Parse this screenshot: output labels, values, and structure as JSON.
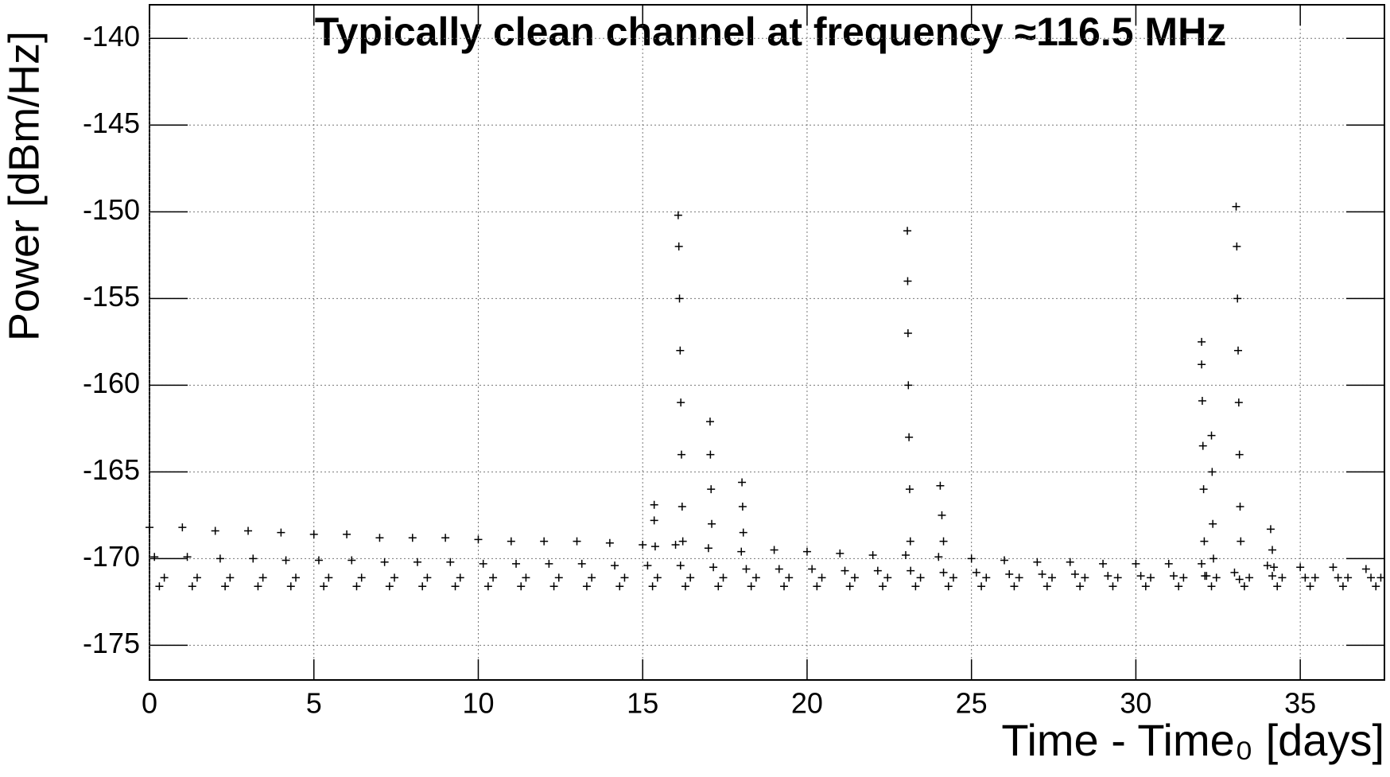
{
  "chart_data": {
    "type": "scatter",
    "title": "Typically clean channel at frequency ≈116.5 MHz",
    "x_label": "Time - Time₀ [days]",
    "y_label": "Power [dBm/Hz]",
    "xlim": [
      0,
      37.56
    ],
    "ylim": [
      -177,
      -138.06
    ],
    "xticks": [
      0,
      5,
      10,
      15,
      20,
      25,
      30,
      35
    ],
    "yticks": [
      -175,
      -170,
      -165,
      -160,
      -155,
      -150,
      -145,
      -140
    ],
    "grid": true,
    "color": "#000000",
    "x": [
      0,
      0.15,
      0.3,
      0.45,
      1,
      1.15,
      1.3,
      1.45,
      2,
      2.15,
      2.3,
      2.45,
      3,
      3.15,
      3.3,
      3.45,
      4,
      4.15,
      4.3,
      4.45,
      5,
      5.15,
      5.3,
      5.45,
      6,
      6.15,
      6.3,
      6.45,
      7,
      7.15,
      7.3,
      7.45,
      8,
      8.15,
      8.3,
      8.45,
      9,
      9.15,
      9.3,
      9.45,
      10,
      10.15,
      10.3,
      10.45,
      11,
      11.15,
      11.3,
      11.45,
      12,
      12.15,
      12.3,
      12.45,
      13,
      13.15,
      13.3,
      13.45,
      14,
      14.15,
      14.3,
      14.45,
      15,
      15.15,
      15.3,
      15.45,
      16,
      16.15,
      16.3,
      16.45,
      17,
      17.15,
      17.3,
      17.45,
      18,
      18.15,
      18.3,
      18.45,
      19,
      19.15,
      19.3,
      19.45,
      20,
      20.15,
      20.3,
      20.45,
      21,
      21.15,
      21.3,
      21.45,
      22,
      22.15,
      22.3,
      22.45,
      23,
      23.15,
      23.3,
      23.45,
      24,
      24.15,
      24.3,
      24.45,
      25,
      25.15,
      25.3,
      25.45,
      26,
      26.15,
      26.3,
      26.45,
      27,
      27.15,
      27.3,
      27.45,
      28,
      28.15,
      28.3,
      28.45,
      29,
      29.15,
      29.3,
      29.45,
      30,
      30.15,
      30.3,
      30.45,
      31,
      31.15,
      31.3,
      31.45,
      32,
      32.15,
      32.3,
      32.45,
      33,
      33.15,
      33.3,
      33.45,
      34,
      34.15,
      34.3,
      34.45,
      35,
      35.15,
      35.3,
      35.45,
      36,
      36.15,
      36.3,
      36.45,
      37,
      37.15,
      37.3,
      37.45,
      15.35,
      15.35,
      15.38,
      16.08,
      16.1,
      16.12,
      16.14,
      16.16,
      16.18,
      16.2,
      16.22,
      17.05,
      17.06,
      17.08,
      17.1,
      18.02,
      18.04,
      18.06,
      23.05,
      23.06,
      23.07,
      23.08,
      23.1,
      23.12,
      23.14,
      24.05,
      24.1,
      24.15,
      32.0,
      32.0,
      32.02,
      32.04,
      32.06,
      32.08,
      32.1,
      32.3,
      32.32,
      32.34,
      32.36,
      33.05,
      33.07,
      33.09,
      33.11,
      33.13,
      33.15,
      33.17,
      33.19,
      34.1,
      34.15,
      34.2
    ],
    "values": [
      -168.2,
      -169.9,
      -171.6,
      -171.1,
      -168.2,
      -169.9,
      -171.6,
      -171.1,
      -168.4,
      -170.0,
      -171.6,
      -171.1,
      -168.4,
      -170.0,
      -171.6,
      -171.1,
      -168.5,
      -170.1,
      -171.6,
      -171.1,
      -168.6,
      -170.1,
      -171.6,
      -171.1,
      -168.6,
      -170.1,
      -171.6,
      -171.1,
      -168.8,
      -170.2,
      -171.6,
      -171.1,
      -168.8,
      -170.2,
      -171.6,
      -171.1,
      -168.8,
      -170.2,
      -171.6,
      -171.1,
      -168.9,
      -170.3,
      -171.6,
      -171.1,
      -169.0,
      -170.3,
      -171.6,
      -171.1,
      -169.0,
      -170.3,
      -171.6,
      -171.1,
      -169.0,
      -170.3,
      -171.6,
      -171.1,
      -169.1,
      -170.4,
      -171.6,
      -171.1,
      -169.2,
      -170.4,
      -171.6,
      -171.1,
      -169.2,
      -170.4,
      -171.6,
      -171.1,
      -169.4,
      -170.5,
      -171.6,
      -171.1,
      -169.6,
      -170.6,
      -171.6,
      -171.1,
      -169.5,
      -170.6,
      -171.6,
      -171.1,
      -169.6,
      -170.6,
      -171.6,
      -171.1,
      -169.7,
      -170.7,
      -171.6,
      -171.1,
      -169.8,
      -170.7,
      -171.6,
      -171.1,
      -169.8,
      -170.7,
      -171.6,
      -171.1,
      -169.9,
      -170.8,
      -171.6,
      -171.1,
      -170.0,
      -170.8,
      -171.6,
      -171.1,
      -170.1,
      -170.9,
      -171.6,
      -171.1,
      -170.2,
      -170.9,
      -171.6,
      -171.1,
      -170.2,
      -170.9,
      -171.6,
      -171.1,
      -170.3,
      -171.0,
      -171.6,
      -171.1,
      -170.3,
      -171.0,
      -171.6,
      -171.1,
      -170.3,
      -171.0,
      -171.6,
      -171.1,
      -170.3,
      -171.0,
      -171.6,
      -171.1,
      -170.8,
      -171.2,
      -171.6,
      -171.1,
      -170.4,
      -171.0,
      -171.6,
      -171.1,
      -170.5,
      -171.1,
      -171.6,
      -171.1,
      -170.5,
      -171.1,
      -171.6,
      -171.1,
      -170.6,
      -171.1,
      -171.6,
      -171.1,
      -166.9,
      -167.8,
      -169.3,
      -150.2,
      -152,
      -155,
      -158,
      -161,
      -164,
      -167,
      -169,
      -162.1,
      -164,
      -166,
      -168,
      -165.6,
      -167,
      -168.5,
      -151.1,
      -154,
      -157,
      -160,
      -163,
      -166,
      -169,
      -165.8,
      -167.5,
      -169,
      -157.5,
      -158.8,
      -160.9,
      -163.5,
      -166,
      -169,
      -171,
      -162.9,
      -165,
      -168,
      -170,
      -149.7,
      -152,
      -155,
      -158,
      -161,
      -164,
      -167,
      -169,
      -168.3,
      -169.5,
      -170.5
    ]
  }
}
